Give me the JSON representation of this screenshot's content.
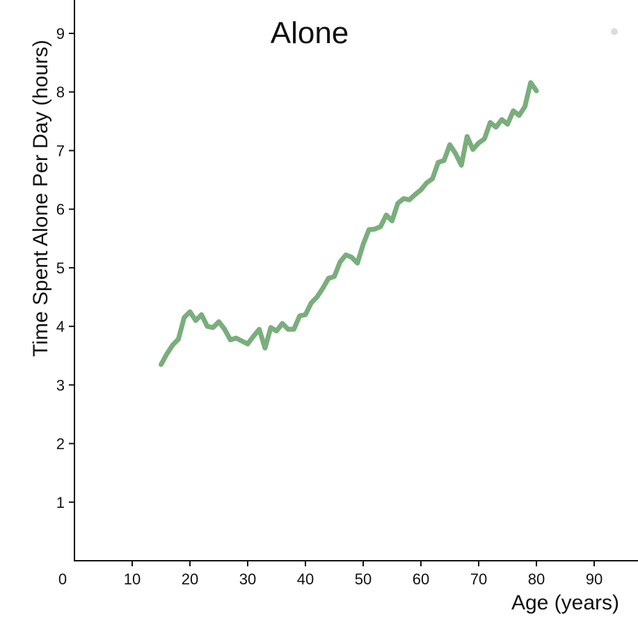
{
  "chart_data": {
    "type": "line",
    "title": "Alone",
    "xlabel": "Age (years)",
    "ylabel": "Time Spent Alone Per Day (hours)",
    "xlim": [
      0,
      95
    ],
    "ylim": [
      0,
      9.5
    ],
    "xticks": [
      0,
      10,
      20,
      30,
      40,
      50,
      60,
      70,
      80,
      90
    ],
    "yticks": [
      1,
      2,
      3,
      4,
      5,
      6,
      7,
      8,
      9
    ],
    "grid": false,
    "series_color": "#7aae7c",
    "marker_color": "#dddddd",
    "series": [
      {
        "x": [
          15,
          16,
          17,
          18,
          19,
          20,
          21,
          22,
          23,
          24,
          25,
          26,
          27,
          28,
          29,
          30,
          31,
          32,
          33,
          34,
          35,
          36,
          37,
          38,
          39,
          40,
          41,
          42,
          43,
          44,
          45,
          46,
          47,
          48,
          49,
          50,
          51,
          52,
          53,
          54,
          55,
          56,
          57,
          58,
          59,
          60,
          61,
          62,
          63,
          64,
          65,
          66,
          67,
          68,
          69,
          70,
          71,
          72,
          73,
          74,
          75,
          76,
          77,
          78,
          79,
          80
        ],
        "values": [
          3.35,
          3.53,
          3.68,
          3.78,
          4.15,
          4.25,
          4.1,
          4.2,
          4.0,
          3.98,
          4.08,
          3.95,
          3.77,
          3.8,
          3.75,
          3.7,
          3.83,
          3.95,
          3.63,
          3.98,
          3.92,
          4.05,
          3.95,
          3.95,
          4.18,
          4.2,
          4.4,
          4.5,
          4.65,
          4.82,
          4.85,
          5.1,
          5.22,
          5.18,
          5.08,
          5.4,
          5.65,
          5.66,
          5.7,
          5.9,
          5.8,
          6.1,
          6.18,
          6.16,
          6.25,
          6.33,
          6.45,
          6.52,
          6.8,
          6.83,
          7.1,
          6.95,
          6.75,
          7.24,
          7.02,
          7.13,
          7.2,
          7.48,
          7.4,
          7.53,
          7.45,
          7.68,
          7.6,
          7.75,
          8.16,
          8.02
        ]
      }
    ],
    "markers": [
      {
        "x": 93.5,
        "y": 9.03
      }
    ]
  }
}
